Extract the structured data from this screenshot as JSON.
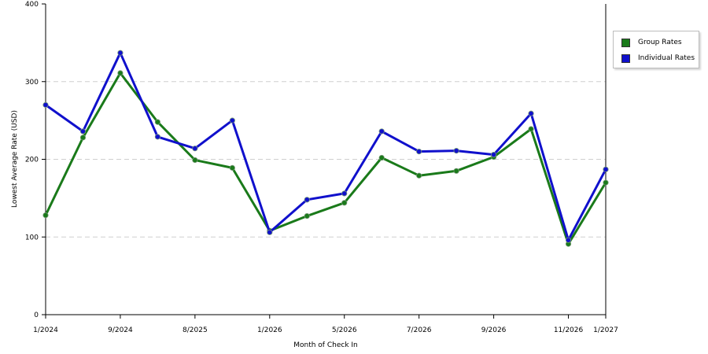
{
  "chart_data": {
    "type": "line",
    "xlabel": "Month of Check In",
    "ylabel": "Lowest Average Rate (USD)",
    "ylim": [
      0,
      400
    ],
    "yticks": [
      0,
      100,
      200,
      300,
      400
    ],
    "grid": "horizontal dashed",
    "legend_placement": "right",
    "x_tick_labels": [
      "1/2024",
      "9/2024",
      "8/2025",
      "1/2026",
      "5/2026",
      "7/2026",
      "9/2026",
      "11/2026",
      "1/2027"
    ],
    "series": [
      {
        "name": "Group Rates",
        "color": "#1a7a1a",
        "values": [
          128,
          228,
          311,
          248,
          199,
          189,
          108,
          127,
          144,
          202,
          179,
          185,
          203,
          239,
          91,
          170
        ]
      },
      {
        "name": "Individual Rates",
        "color": "#1010cc",
        "values": [
          270,
          236,
          337,
          229,
          214,
          250,
          106,
          148,
          156,
          236,
          210,
          211,
          206,
          259,
          96,
          187
        ]
      }
    ]
  }
}
